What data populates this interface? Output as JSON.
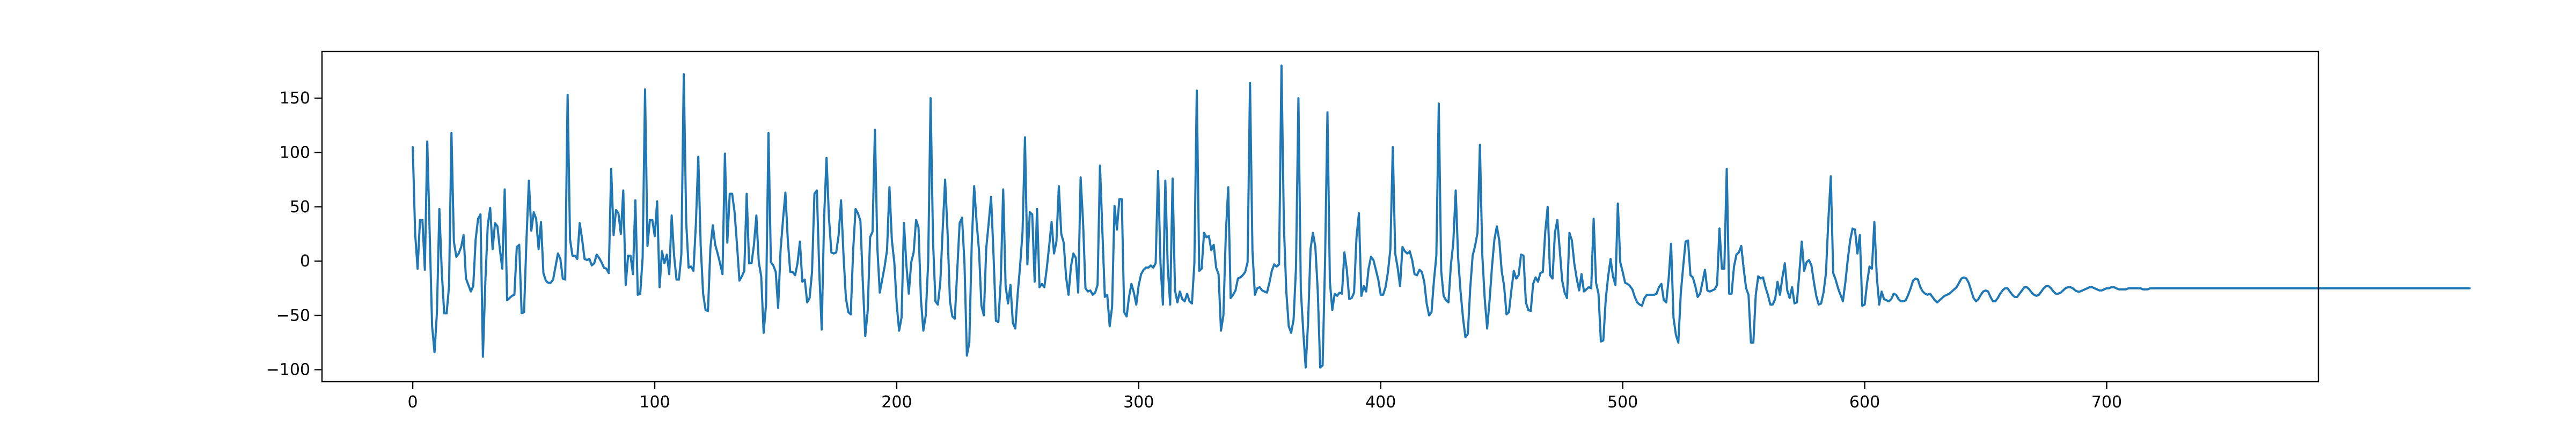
{
  "chart_data": {
    "type": "line",
    "title": "",
    "xlabel": "",
    "ylabel": "",
    "xlim": [
      -37.5,
      787.5
    ],
    "ylim": [
      -111,
      193
    ],
    "x_ticks": [
      0,
      100,
      200,
      300,
      400,
      500,
      600,
      700
    ],
    "y_ticks": [
      -100,
      -50,
      0,
      50,
      100,
      150
    ],
    "x_tick_labels": [
      "0",
      "100",
      "200",
      "300",
      "400",
      "500",
      "600",
      "700"
    ],
    "y_tick_labels": [
      "−100",
      "−50",
      "0",
      "50",
      "100",
      "150"
    ],
    "grid": false,
    "legend": "none",
    "color": "#1f77b4",
    "x_start": 0,
    "x_step": 1,
    "series": [
      {
        "values": [
          105,
          25,
          -7,
          38,
          38,
          -8,
          110,
          26,
          -60,
          -84,
          -47,
          48,
          -10,
          -48,
          -48,
          -23,
          118,
          18,
          4,
          7,
          13,
          24,
          -16,
          -22,
          -28,
          -23,
          20,
          39,
          43,
          -88,
          -19,
          33,
          49,
          11,
          35,
          32,
          11,
          -7,
          66,
          -36,
          -34,
          -32,
          -31,
          13,
          15,
          -48,
          -47,
          20,
          74,
          28,
          45,
          39,
          11,
          36,
          -11,
          -18,
          -20,
          -20,
          -17,
          -5,
          7,
          2,
          -16,
          -17,
          153,
          20,
          5,
          5,
          2,
          35,
          20,
          2,
          1,
          2,
          -4,
          -2,
          6,
          3,
          -1,
          -6,
          -7,
          -11,
          85,
          24,
          47,
          44,
          25,
          65,
          -22,
          5,
          5,
          -12,
          56,
          -31,
          -30,
          3,
          158,
          14,
          38,
          38,
          23,
          55,
          -24,
          9,
          -2,
          6,
          -12,
          42,
          5,
          -17,
          -17,
          6,
          172,
          36,
          -6,
          -5,
          -9,
          34,
          96,
          14,
          -30,
          -45,
          -46,
          12,
          33,
          15,
          7,
          -2,
          -12,
          99,
          17,
          62,
          62,
          45,
          15,
          -18,
          -14,
          -9,
          62,
          -2,
          -2,
          15,
          42,
          -1,
          -14,
          -66,
          -40,
          118,
          -1,
          -4,
          -10,
          -43,
          10,
          38,
          63,
          19,
          -10,
          -10,
          -13,
          -2,
          18,
          -19,
          -17,
          -38,
          -34,
          -10,
          62,
          65,
          -10,
          -63,
          40,
          95,
          40,
          8,
          7,
          8,
          24,
          56,
          6,
          -34,
          -47,
          -49,
          10,
          48,
          44,
          37,
          -20,
          -69,
          -46,
          22,
          27,
          121,
          12,
          -29,
          -17,
          -5,
          10,
          68,
          19,
          -1,
          -40,
          -64,
          -52,
          35,
          -4,
          -30,
          -1,
          8,
          38,
          31,
          -35,
          -64,
          -50,
          -1,
          150,
          19,
          -37,
          -40,
          -20,
          29,
          75,
          27,
          -37,
          -51,
          -53,
          -9,
          35,
          40,
          -2,
          -87,
          -75,
          16,
          69,
          36,
          10,
          -41,
          -50,
          12,
          35,
          59,
          6,
          -55,
          -56,
          -18,
          66,
          -23,
          -39,
          -22,
          -57,
          -62,
          -30,
          -4,
          27,
          114,
          -3,
          45,
          43,
          -19,
          48,
          -24,
          -21,
          -24,
          -7,
          14,
          36,
          7,
          18,
          69,
          25,
          17,
          -15,
          -31,
          -5,
          7,
          3,
          -29,
          77,
          36,
          -25,
          -28,
          -27,
          -31,
          -29,
          -22,
          88,
          27,
          -33,
          -31,
          -60,
          -42,
          51,
          29,
          57,
          57,
          -47,
          -51,
          -33,
          -21,
          -29,
          -40,
          -22,
          -12,
          -8,
          -6,
          -6,
          -4,
          -6,
          -2,
          83,
          -2,
          -40,
          74,
          -6,
          -40,
          76,
          -27,
          -38,
          -28,
          -35,
          -37,
          -30,
          -37,
          -39,
          -2,
          157,
          -9,
          -7,
          26,
          22,
          23,
          10,
          15,
          -6,
          -12,
          -64,
          -50,
          25,
          68,
          -34,
          -31,
          -27,
          -16,
          -15,
          -13,
          -10,
          -1,
          164,
          10,
          -31,
          -25,
          -24,
          -27,
          -28,
          -29,
          -20,
          -9,
          -3,
          -5,
          -3,
          180,
          32,
          -28,
          -60,
          -66,
          -54,
          -6,
          150,
          -27,
          -65,
          -98,
          -56,
          11,
          26,
          13,
          -28,
          -98,
          -96,
          -1,
          137,
          -19,
          -45,
          -30,
          -32,
          -29,
          -30,
          8,
          -8,
          -35,
          -34,
          -29,
          22,
          44,
          -32,
          -23,
          -28,
          -7,
          4,
          1,
          -8,
          -17,
          -31,
          -31,
          -24,
          -10,
          11,
          105,
          7,
          -6,
          -23,
          13,
          9,
          7,
          9,
          1,
          -12,
          -13,
          -8,
          -10,
          -19,
          -39,
          -50,
          -47,
          -18,
          5,
          145,
          -9,
          -32,
          -36,
          -38,
          -4,
          17,
          65,
          3,
          -28,
          -52,
          -70,
          -67,
          -25,
          5,
          14,
          26,
          107,
          5,
          -35,
          -62,
          -36,
          -5,
          20,
          32,
          19,
          -9,
          -23,
          -49,
          -47,
          -27,
          -9,
          -16,
          -13,
          6,
          5,
          -38,
          -45,
          -46,
          -21,
          -15,
          -19,
          -11,
          -10,
          27,
          50,
          -13,
          -16,
          26,
          38,
          10,
          -18,
          -29,
          -34,
          26,
          19,
          -2,
          -16,
          -27,
          -12,
          -28,
          -26,
          -24,
          -25,
          39,
          -20,
          -30,
          -74,
          -73,
          -35,
          -14,
          2,
          -14,
          -22,
          53,
          -1,
          -10,
          -20,
          -21,
          -23,
          -26,
          -33,
          -38,
          -40,
          -41,
          -34,
          -31,
          -31,
          -31,
          -31,
          -30,
          -24,
          -21,
          -36,
          -38,
          -16,
          16,
          -52,
          -68,
          -75,
          -30,
          -5,
          18,
          19,
          -13,
          -15,
          -23,
          -33,
          -30,
          -19,
          -8,
          -27,
          -28,
          -27,
          -26,
          -22,
          30,
          -7,
          -7,
          85,
          -30,
          -30,
          -5,
          6,
          8,
          14,
          -7,
          -25,
          -31,
          -75,
          -75,
          -31,
          -14,
          -16,
          -15,
          -24,
          -31,
          -40,
          -40,
          -35,
          -19,
          -31,
          -15,
          -2,
          -27,
          -34,
          -24,
          -39,
          -38,
          -11,
          18,
          -9,
          -1,
          1,
          -4,
          -19,
          -32,
          -40,
          -39,
          -29,
          -11,
          38,
          78,
          -11,
          -17,
          -25,
          -31,
          -37,
          -20,
          1,
          19,
          30,
          29,
          7,
          24,
          -41,
          -40,
          -20,
          -5,
          -7,
          36,
          -14,
          -40,
          -28,
          -35,
          -36,
          -37,
          -35,
          -30,
          -31,
          -35,
          -37,
          -37,
          -36,
          -31,
          -25,
          -18,
          -16,
          -17,
          -24,
          -28,
          -30,
          -31,
          -30,
          -33,
          -36,
          -38,
          -36,
          -34,
          -32,
          -31,
          -30,
          -28,
          -26,
          -24,
          -20,
          -16,
          -15,
          -16,
          -20,
          -27,
          -34,
          -37,
          -35,
          -31,
          -28,
          -27,
          -28,
          -33,
          -37,
          -37,
          -34,
          -30,
          -27,
          -25,
          -25,
          -28,
          -31,
          -33,
          -33,
          -30,
          -27,
          -24,
          -24,
          -26,
          -29,
          -31,
          -32,
          -31,
          -28,
          -25,
          -23,
          -23,
          -25,
          -28,
          -30,
          -30,
          -29,
          -27,
          -25,
          -24,
          -24,
          -25,
          -27,
          -28,
          -28,
          -27,
          -26,
          -25,
          -24,
          -24,
          -25,
          -26,
          -27,
          -27,
          -26,
          -25,
          -25,
          -24,
          -24,
          -25,
          -26,
          -26,
          -26,
          -26,
          -25,
          -25,
          -25,
          -25,
          -25,
          -25,
          -26,
          -26,
          -26,
          -25,
          -25,
          -25,
          -25,
          -25,
          -25,
          -25,
          -25,
          -25,
          -25,
          -25,
          -25,
          -25,
          -25,
          -25,
          -25,
          -25,
          -25,
          -25,
          -25,
          -25,
          -25,
          -25,
          -25,
          -25,
          -25,
          -25,
          -25,
          -25,
          -25,
          -25,
          -25,
          -25,
          -25,
          -25,
          -25,
          -25,
          -25,
          -25,
          -25,
          -25,
          -25,
          -25,
          -25,
          -25,
          -25,
          -25,
          -25,
          -25,
          -25,
          -25,
          -25,
          -25,
          -25,
          -25,
          -25,
          -25,
          -25,
          -25,
          -25,
          -25,
          -25,
          -25,
          -25,
          -25,
          -25,
          -25,
          -25,
          -25,
          -25,
          -25,
          -25,
          -25,
          -25,
          -25,
          -25,
          -25,
          -25,
          -25,
          -25,
          -25,
          -25,
          -25,
          -25,
          -25,
          -25,
          -25,
          -25,
          -25,
          -25,
          -25,
          -25,
          -25,
          -25,
          -25,
          -25,
          -25,
          -25,
          -25,
          -25,
          -25,
          -25,
          -25,
          -25,
          -25,
          -25,
          -25,
          -25,
          -25,
          -25,
          -25,
          -25,
          -25,
          -25,
          -25,
          -25,
          -25,
          -25,
          -25,
          -25,
          -25,
          -25,
          -25,
          -25,
          -25,
          -25,
          -25,
          -25,
          -25,
          -25,
          -25,
          -25,
          -25
        ]
      }
    ]
  }
}
